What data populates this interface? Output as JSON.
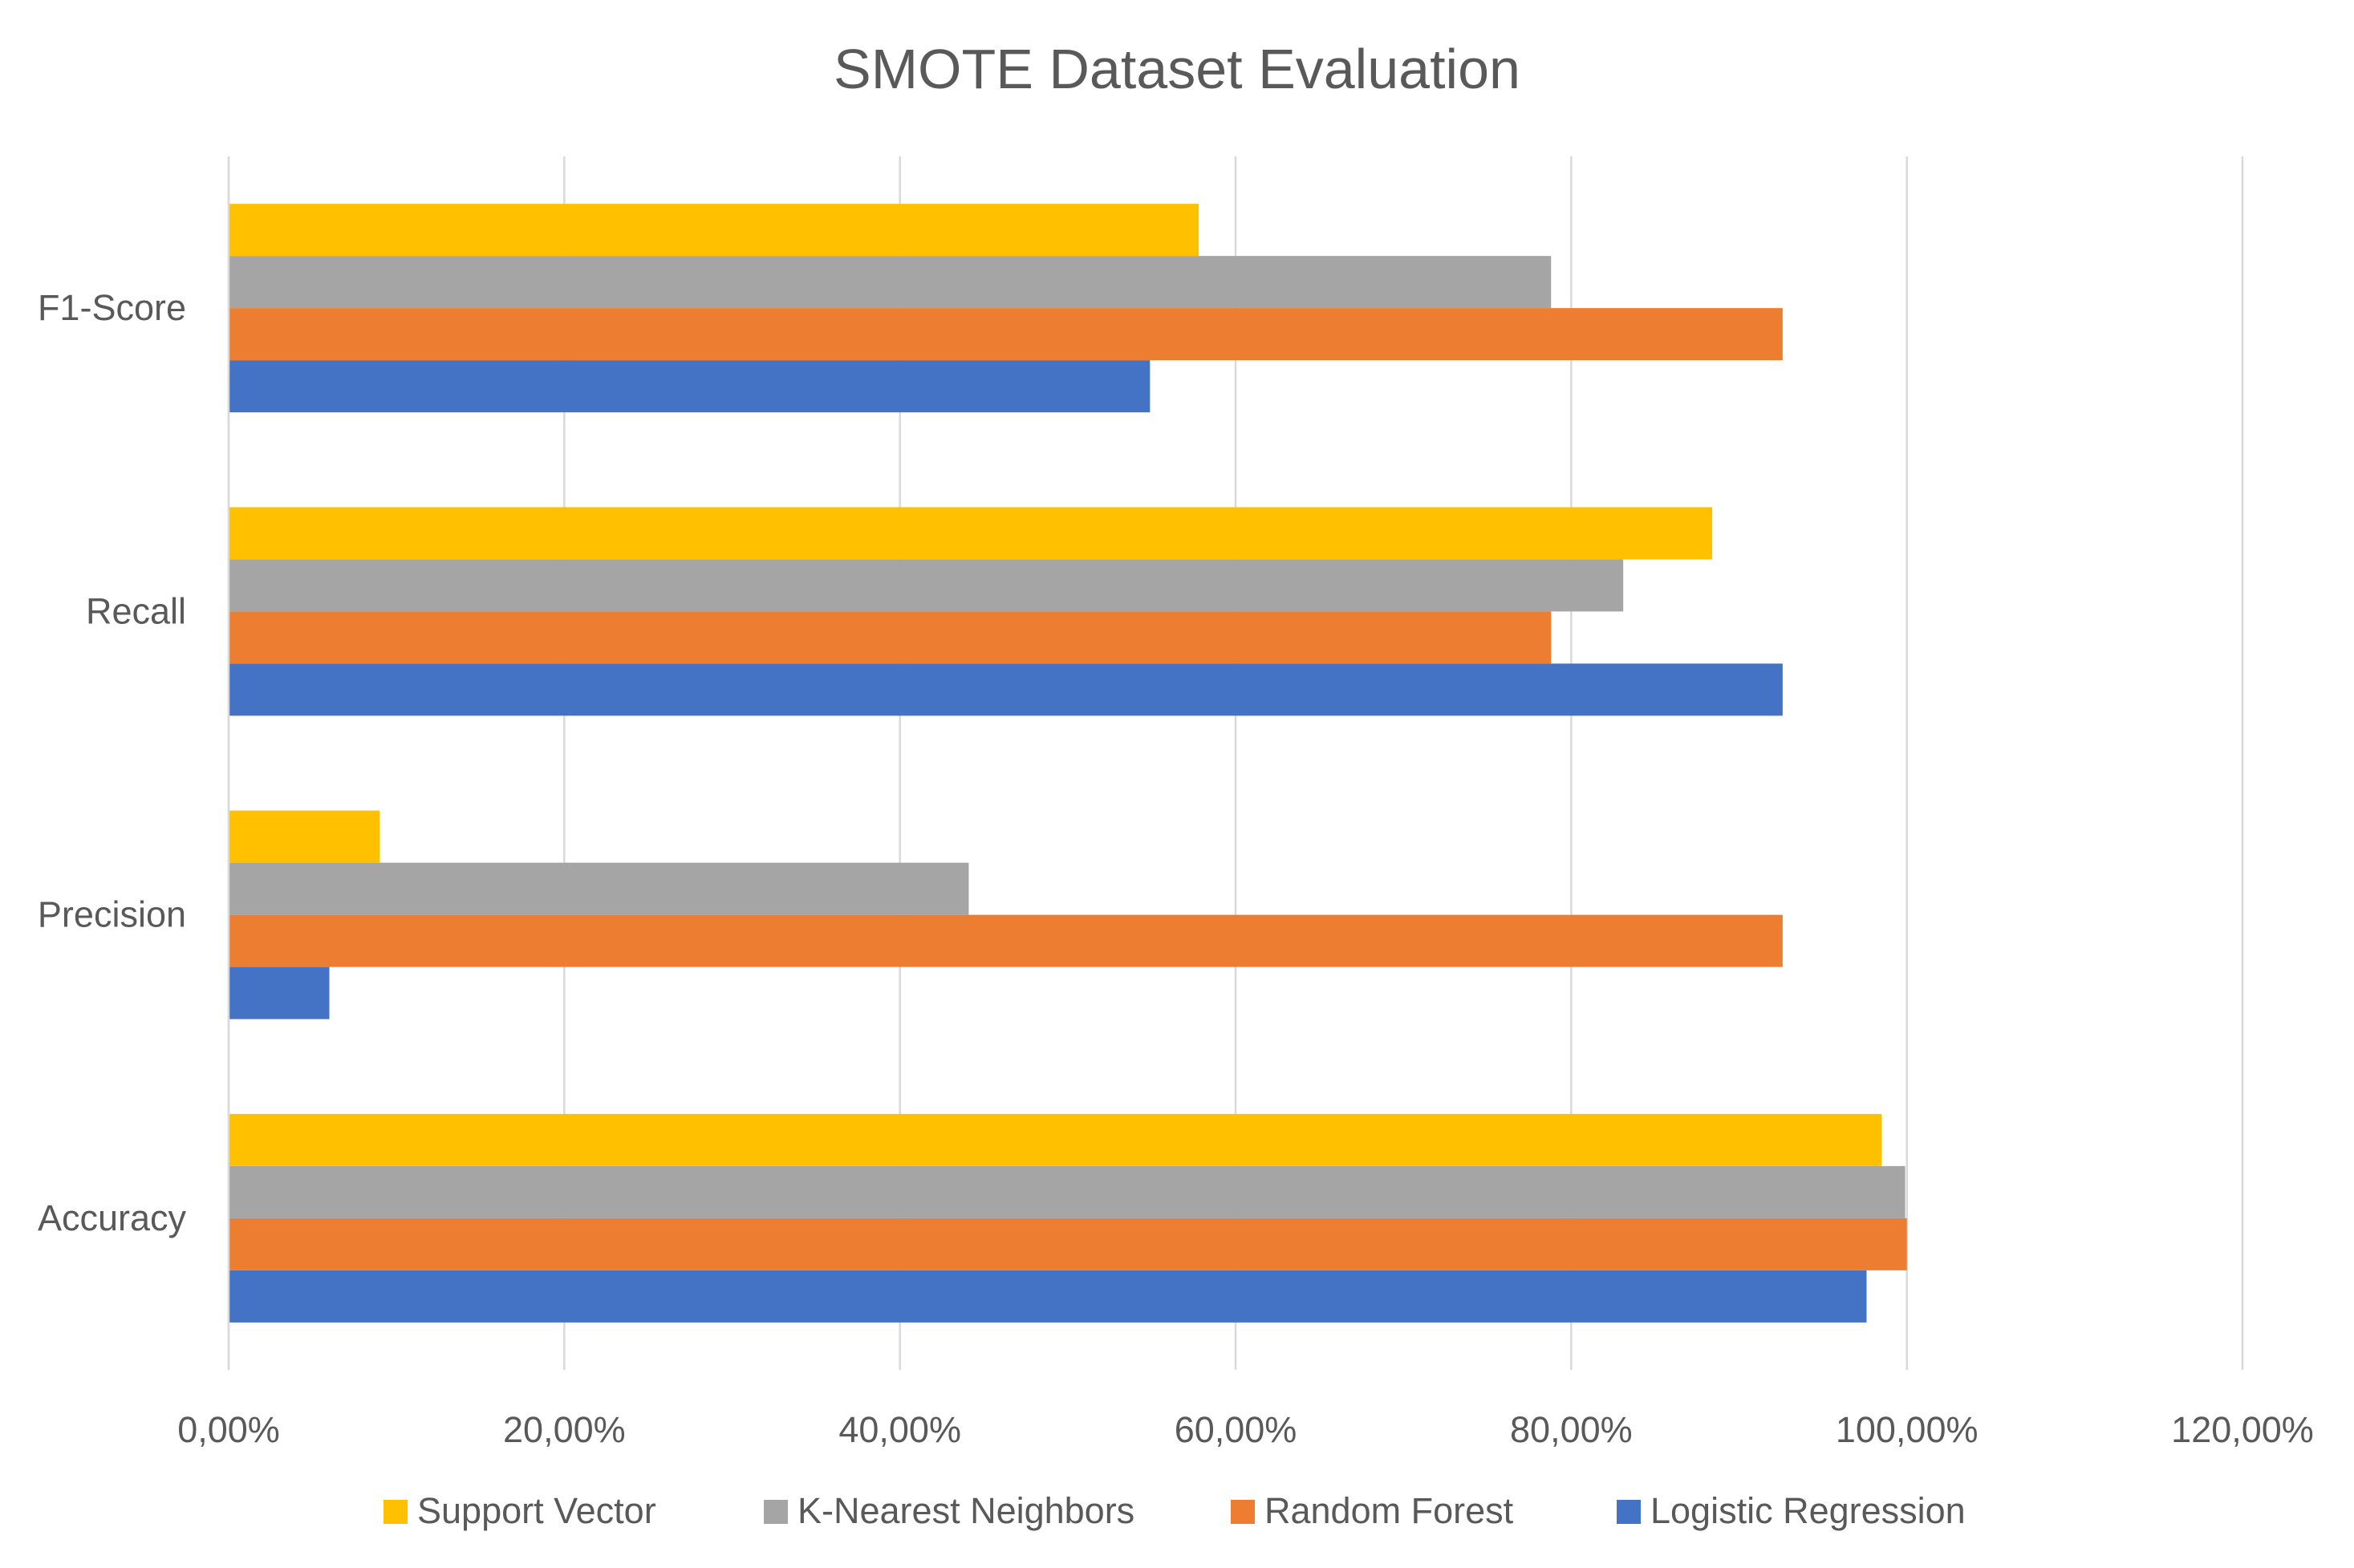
{
  "chart_data": {
    "type": "bar",
    "orientation": "horizontal",
    "title": "SMOTE Dataset Evaluation",
    "xlabel": "",
    "ylabel": "",
    "categories": [
      "Accuracy",
      "Precision",
      "Recall",
      "F1-Score"
    ],
    "series": [
      {
        "name": "Logistic Regression",
        "color": "#4472C4",
        "values": [
          0.976,
          0.06,
          0.926,
          0.549
        ]
      },
      {
        "name": "Random Forest",
        "color": "#ED7D31",
        "values": [
          1.0,
          0.926,
          0.788,
          0.926
        ]
      },
      {
        "name": "K-Nearest Neighbors",
        "color": "#A5A5A5",
        "values": [
          0.999,
          0.441,
          0.831,
          0.788
        ]
      },
      {
        "name": "Support Vector",
        "color": "#FFC000",
        "values": [
          0.985,
          0.09,
          0.884,
          0.578
        ]
      }
    ],
    "xlim": [
      0,
      1.2
    ],
    "ticks": [
      0,
      0.2,
      0.4,
      0.6,
      0.8,
      1.0,
      1.2
    ],
    "tick_labels": [
      "0,00%",
      "20,00%",
      "40,00%",
      "60,00%",
      "80,00%",
      "100,00%",
      "120,00%"
    ],
    "grid": "vertical",
    "legend_position": "bottom",
    "legend_order": [
      "Support Vector",
      "K-Nearest Neighbors",
      "Random Forest",
      "Logistic Regression"
    ]
  }
}
